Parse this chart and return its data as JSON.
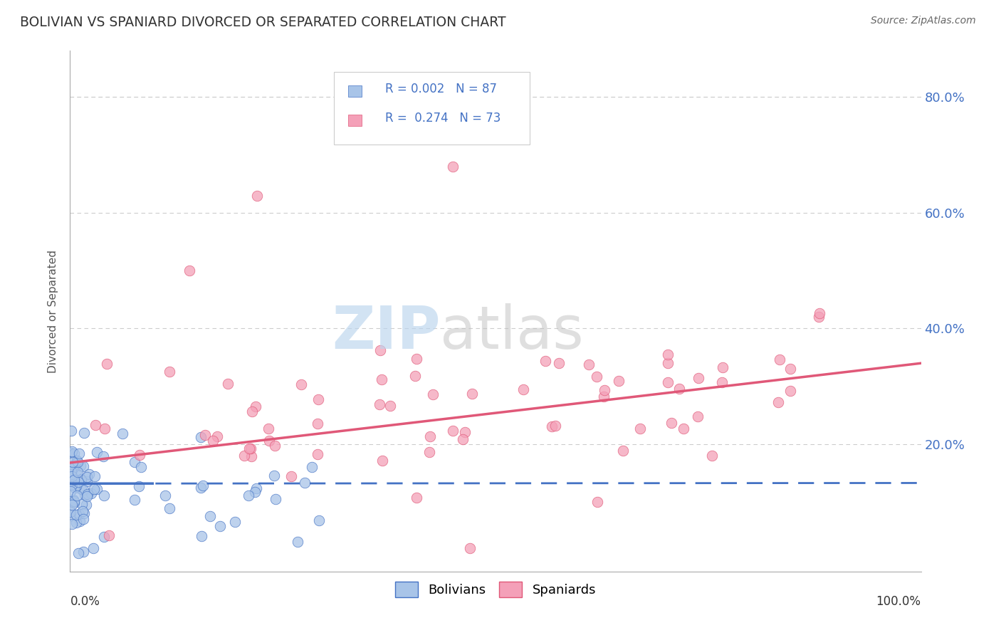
{
  "title": "BOLIVIAN VS SPANIARD DIVORCED OR SEPARATED CORRELATION CHART",
  "source_text": "Source: ZipAtlas.com",
  "ylabel": "Divorced or Separated",
  "xlim": [
    0.0,
    1.0
  ],
  "ylim": [
    -0.02,
    0.88
  ],
  "bolivian_color": "#a8c4e8",
  "spaniard_color": "#f4a0b8",
  "bolivian_line_color": "#4472c4",
  "spaniard_line_color": "#e05878",
  "title_color": "#333333",
  "axis_label_color": "#4472c4",
  "grid_color": "#cccccc",
  "bolivian_intercept": 0.132,
  "bolivian_slope": 0.001,
  "spaniard_intercept": 0.168,
  "spaniard_slope": 0.172,
  "ytick_positions": [
    0.0,
    0.2,
    0.4,
    0.6,
    0.8
  ],
  "ytick_labels": [
    "",
    "20.0%",
    "40.0%",
    "60.0%",
    "80.0%"
  ]
}
